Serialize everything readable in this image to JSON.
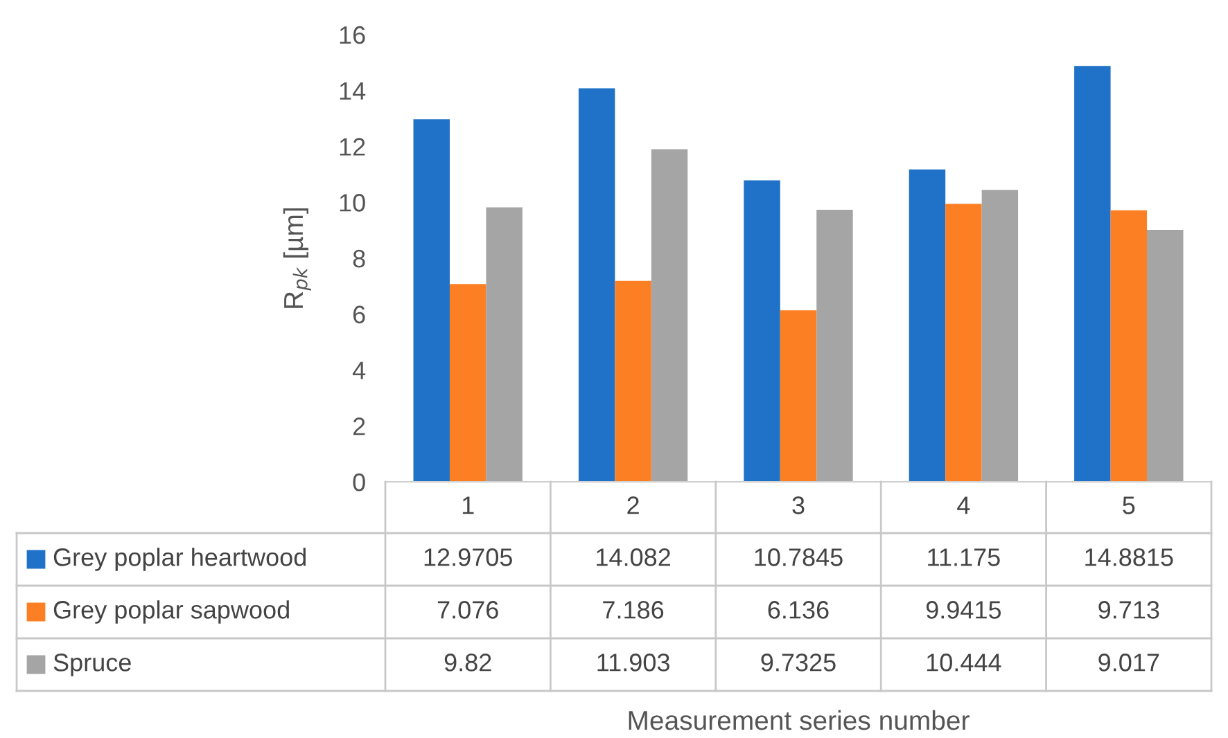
{
  "chart_data": {
    "type": "bar",
    "annotations": [
      "Measurement series number"
    ],
    "ylabel": "R$_{pk}$ [µm]",
    "categories": [
      "1",
      "2",
      "3",
      "4",
      "5"
    ],
    "series": [
      {
        "name": "Grey poplar heartwood",
        "color": "#1f72c8",
        "values": [
          12.9705,
          14.082,
          10.7845,
          11.175,
          14.8815
        ]
      },
      {
        "name": "Grey poplar sapwood",
        "color": "#fd7f23",
        "values": [
          7.076,
          7.186,
          6.136,
          9.9415,
          9.713
        ]
      },
      {
        "name": "Spruce",
        "color": "#a5a5a5",
        "values": [
          9.82,
          11.903,
          9.7325,
          10.444,
          9.017
        ]
      }
    ],
    "ylim": [
      0,
      16
    ],
    "yticks": [
      0,
      2,
      4,
      6,
      8,
      10,
      12,
      14,
      16
    ],
    "grid": false,
    "legend": "bottom left",
    "data_labels": true
  }
}
